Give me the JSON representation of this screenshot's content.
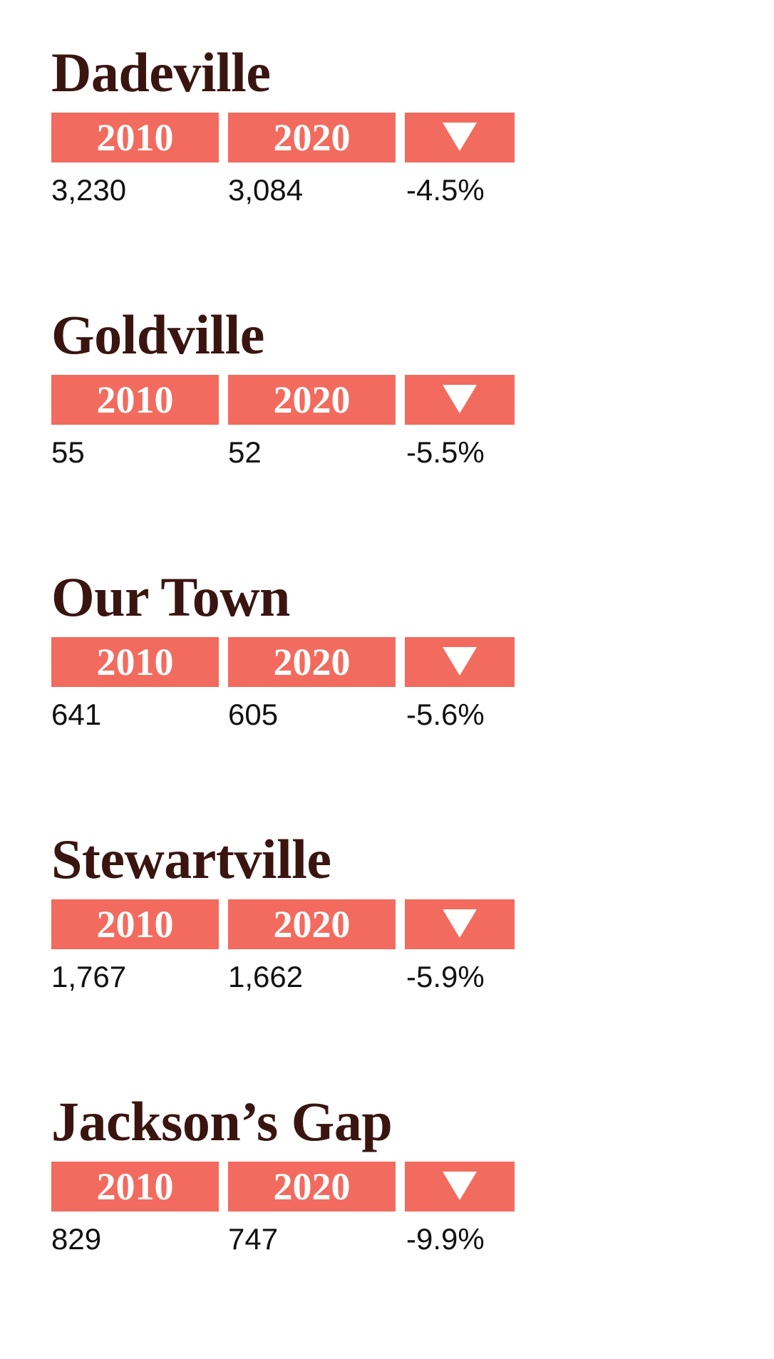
{
  "towns": [
    {
      "name": "Dadeville",
      "year_a": "2010",
      "year_b": "2020",
      "icon": "down-triangle-icon",
      "value_a": "3,230",
      "value_b": "3,084",
      "change": "-4.5%"
    },
    {
      "name": "Goldville",
      "year_a": "2010",
      "year_b": "2020",
      "icon": "down-triangle-icon",
      "value_a": "55",
      "value_b": "52",
      "change": "-5.5%"
    },
    {
      "name": "Our Town",
      "year_a": "2010",
      "year_b": "2020",
      "icon": "down-triangle-icon",
      "value_a": "641",
      "value_b": "605",
      "change": "-5.6%"
    },
    {
      "name": "Stewartville",
      "year_a": "2010",
      "year_b": "2020",
      "icon": "down-triangle-icon",
      "value_a": "1,767",
      "value_b": "1,662",
      "change": "-5.9%"
    },
    {
      "name": "Jackson’s Gap",
      "year_a": "2010",
      "year_b": "2020",
      "icon": "down-triangle-icon",
      "value_a": "829",
      "value_b": "747",
      "change": "-9.9%"
    }
  ],
  "colors": {
    "header_fill": "#f26b5e",
    "title_text": "#3a1510",
    "value_text": "#111111"
  }
}
